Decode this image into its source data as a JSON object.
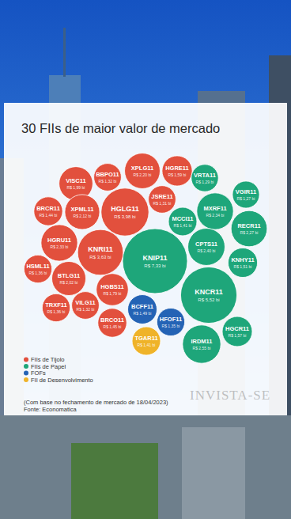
{
  "chart_data": {
    "type": "bubble",
    "title": "30 FIIs de maior valor de mercado",
    "data_labels": true,
    "series": [
      {
        "name": "FIIs de Tijolo",
        "color": "#e2503d",
        "labels": [
          "VISC11",
          "BBPO11",
          "XPLG11",
          "HGRE11",
          "BRCR11",
          "XPML11",
          "HGLG11",
          "JSRE11",
          "HGRU11",
          "KNRI11",
          "HSML11",
          "BTLG11",
          "HGBS11",
          "TRXF11",
          "VILG11",
          "BRCO11"
        ],
        "values": [
          1.99,
          1.32,
          2.2,
          1.59,
          1.44,
          2.12,
          3.98,
          1.31,
          2.33,
          3.63,
          1.36,
          2.02,
          1.79,
          1.36,
          1.32,
          1.45
        ],
        "value_labels": [
          "R$ 1,99 bi",
          "R$ 1,32 bi",
          "R$ 2,20 bi",
          "R$ 1,59 bi",
          "R$ 1,44 bi",
          "R$ 2,12 bi",
          "R$ 3,98 bi",
          "R$ 1,31 bi",
          "R$ 2,33 bi",
          "R$ 3,63 bi",
          "R$ 1,36 bi",
          "R$ 2,02 bi",
          "R$ 1,79 bi",
          "R$ 1,36 bi",
          "R$ 1,32 bi",
          "R$ 1,45 bi"
        ]
      },
      {
        "name": "FIIs de Papel",
        "color": "#1ea67a",
        "labels": [
          "VRTA11",
          "MXRF11",
          "VGIR11",
          "MCCI11",
          "RECR11",
          "KNIP11",
          "CPTS11",
          "KNHY11",
          "KNCR11",
          "HGCR11",
          "IRDM11"
        ],
        "values": [
          1.29,
          2.34,
          1.27,
          1.41,
          2.27,
          7.33,
          2.4,
          1.51,
          5.52,
          1.57,
          2.55
        ],
        "value_labels": [
          "R$ 1,29 bi",
          "R$ 2,34 bi",
          "R$ 1,27 bi",
          "R$ 1,41 bi",
          "R$ 2,27 bi",
          "R$ 7,33 bi",
          "R$ 2,40 bi",
          "R$ 1,51 bi",
          "R$ 5,52 bi",
          "R$ 1,57 bi",
          "R$ 2,55 bi"
        ]
      },
      {
        "name": "FOFs",
        "color": "#2463b5",
        "labels": [
          "BCFF11",
          "HFOF11"
        ],
        "values": [
          1.49,
          1.35
        ],
        "value_labels": [
          "R$ 1,49 bi",
          "R$ 1,35 bi"
        ]
      },
      {
        "name": "FII de Desenvolvimento",
        "color": "#efb329",
        "labels": [
          "TGAR11"
        ],
        "values": [
          1.41
        ],
        "value_labels": [
          "R$ 1,41 bi"
        ]
      }
    ],
    "annotations": [
      "(Com base no fechamento de mercado de 18/04/2023)",
      "Fonte: Economatica"
    ],
    "watermark": "INVISTA-SE"
  }
}
